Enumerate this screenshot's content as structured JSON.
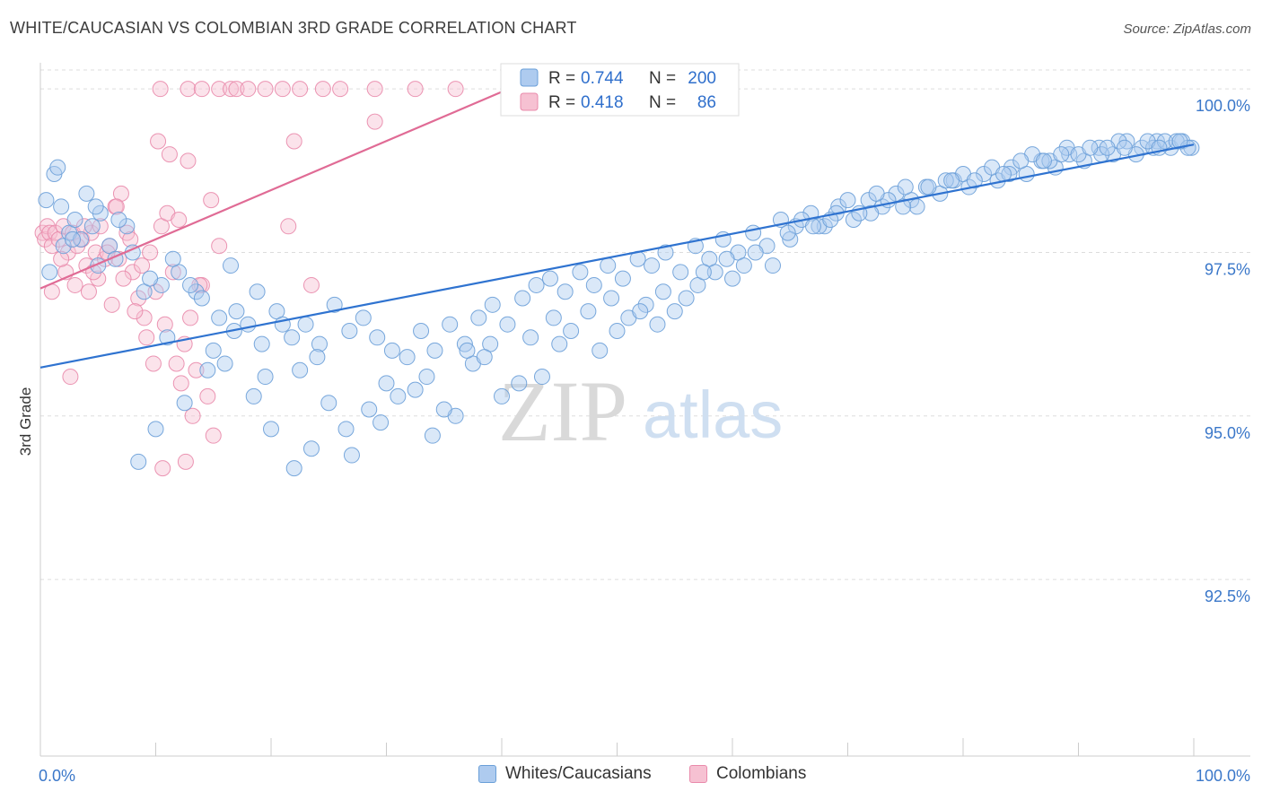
{
  "header": {
    "title": "WHITE/CAUCASIAN VS COLOMBIAN 3RD GRADE CORRELATION CHART",
    "source": "Source: ZipAtlas.com"
  },
  "watermark": {
    "zip": "ZIP",
    "atlas": "atlas"
  },
  "colors": {
    "blue_fill": "#aecbef",
    "blue_stroke": "#6a9fd8",
    "blue_line": "#2f73d0",
    "pink_fill": "#f6c1d2",
    "pink_stroke": "#e98aab",
    "pink_line": "#e06b95",
    "tick_text": "#3a77c9",
    "grid": "#dddddd"
  },
  "stats_legend": [
    {
      "r_label": "R =",
      "r_value": "0.744",
      "n_label": "N =",
      "n_value": "200"
    },
    {
      "r_label": "R =",
      "r_value": "0.418",
      "n_label": "N =",
      "n_value": "86"
    }
  ],
  "bottom_legend": [
    {
      "label": "Whites/Caucasians"
    },
    {
      "label": "Colombians"
    }
  ],
  "chart_data": {
    "type": "scatter",
    "title": "WHITE/CAUCASIAN VS COLOMBIAN 3RD GRADE CORRELATION CHART",
    "xlabel": "",
    "ylabel": "3rd Grade",
    "xlim": [
      0,
      100
    ],
    "ylim": [
      89.8,
      100.4
    ],
    "x_tick_labels": [
      "0.0%",
      "100.0%"
    ],
    "y_ticks": [
      100.0,
      97.5,
      95.0,
      92.5
    ],
    "y_tick_labels": [
      "100.0%",
      "97.5%",
      "95.0%",
      "92.5%"
    ],
    "grid": true,
    "legend": "top-center",
    "series": [
      {
        "name": "Whites/Caucasians",
        "r": 0.744,
        "n": 200,
        "trend": {
          "x": [
            0,
            100
          ],
          "y": [
            95.74,
            99.15
          ]
        },
        "points": [
          [
            0.5,
            98.3
          ],
          [
            1.2,
            98.7
          ],
          [
            1.8,
            98.2
          ],
          [
            2.5,
            97.8
          ],
          [
            3.0,
            98.0
          ],
          [
            4.0,
            98.4
          ],
          [
            4.5,
            97.9
          ],
          [
            5.2,
            98.1
          ],
          [
            6.0,
            97.6
          ],
          [
            7.5,
            97.9
          ],
          [
            0.8,
            97.2
          ],
          [
            2.0,
            97.6
          ],
          [
            3.5,
            97.7
          ],
          [
            5.0,
            97.3
          ],
          [
            6.5,
            97.4
          ],
          [
            8.0,
            97.5
          ],
          [
            9.0,
            96.9
          ],
          [
            10.5,
            97.0
          ],
          [
            12.0,
            97.2
          ],
          [
            13.5,
            96.9
          ],
          [
            14.0,
            96.8
          ],
          [
            15.5,
            96.5
          ],
          [
            16.8,
            96.3
          ],
          [
            18.0,
            96.4
          ],
          [
            19.2,
            96.1
          ],
          [
            20.5,
            96.6
          ],
          [
            21.8,
            96.2
          ],
          [
            23.0,
            96.4
          ],
          [
            24.2,
            96.1
          ],
          [
            25.5,
            96.7
          ],
          [
            26.8,
            96.3
          ],
          [
            28.0,
            96.5
          ],
          [
            29.2,
            96.2
          ],
          [
            30.5,
            96.0
          ],
          [
            31.8,
            95.9
          ],
          [
            33.0,
            96.3
          ],
          [
            34.2,
            96.0
          ],
          [
            35.5,
            96.4
          ],
          [
            36.8,
            96.1
          ],
          [
            38.0,
            96.5
          ],
          [
            39.2,
            96.7
          ],
          [
            40.5,
            96.4
          ],
          [
            41.8,
            96.8
          ],
          [
            43.0,
            97.0
          ],
          [
            44.2,
            97.1
          ],
          [
            45.5,
            96.9
          ],
          [
            46.8,
            97.2
          ],
          [
            48.0,
            97.0
          ],
          [
            49.2,
            97.3
          ],
          [
            50.5,
            97.1
          ],
          [
            51.8,
            97.4
          ],
          [
            53.0,
            97.3
          ],
          [
            54.2,
            97.5
          ],
          [
            55.5,
            97.2
          ],
          [
            56.8,
            97.6
          ],
          [
            58.0,
            97.4
          ],
          [
            59.2,
            97.7
          ],
          [
            60.5,
            97.5
          ],
          [
            61.8,
            97.8
          ],
          [
            63.0,
            97.6
          ],
          [
            64.2,
            98.0
          ],
          [
            65.5,
            97.9
          ],
          [
            66.8,
            98.1
          ],
          [
            68.0,
            97.9
          ],
          [
            69.2,
            98.2
          ],
          [
            70.5,
            98.0
          ],
          [
            71.8,
            98.3
          ],
          [
            73.0,
            98.2
          ],
          [
            74.2,
            98.4
          ],
          [
            75.5,
            98.3
          ],
          [
            76.8,
            98.5
          ],
          [
            78.0,
            98.4
          ],
          [
            79.2,
            98.6
          ],
          [
            80.5,
            98.5
          ],
          [
            81.8,
            98.7
          ],
          [
            83.0,
            98.6
          ],
          [
            84.2,
            98.8
          ],
          [
            85.5,
            98.7
          ],
          [
            86.8,
            98.9
          ],
          [
            88.0,
            98.8
          ],
          [
            89.2,
            99.0
          ],
          [
            90.5,
            98.9
          ],
          [
            91.8,
            99.1
          ],
          [
            93.0,
            99.0
          ],
          [
            94.2,
            99.2
          ],
          [
            95.5,
            99.1
          ],
          [
            96.8,
            99.2
          ],
          [
            98.0,
            99.1
          ],
          [
            99.0,
            99.2
          ],
          [
            99.8,
            99.1
          ],
          [
            1.5,
            98.8
          ],
          [
            4.8,
            98.2
          ],
          [
            9.5,
            97.1
          ],
          [
            11.0,
            96.2
          ],
          [
            13.0,
            97.0
          ],
          [
            15.0,
            96.0
          ],
          [
            17.0,
            96.6
          ],
          [
            19.5,
            95.6
          ],
          [
            21.0,
            96.4
          ],
          [
            22.5,
            95.7
          ],
          [
            24.0,
            95.9
          ],
          [
            25.0,
            95.2
          ],
          [
            26.5,
            94.8
          ],
          [
            28.5,
            95.1
          ],
          [
            30.0,
            95.5
          ],
          [
            32.5,
            95.4
          ],
          [
            34.0,
            94.7
          ],
          [
            36.0,
            95.0
          ],
          [
            37.5,
            95.8
          ],
          [
            39.0,
            96.1
          ],
          [
            40.0,
            95.3
          ],
          [
            41.5,
            95.5
          ],
          [
            42.5,
            96.2
          ],
          [
            44.5,
            96.5
          ],
          [
            46.0,
            96.3
          ],
          [
            47.5,
            96.6
          ],
          [
            49.5,
            96.8
          ],
          [
            51.0,
            96.5
          ],
          [
            52.5,
            96.7
          ],
          [
            54.0,
            96.9
          ],
          [
            55.0,
            96.6
          ],
          [
            57.0,
            97.0
          ],
          [
            58.5,
            97.2
          ],
          [
            60.0,
            97.1
          ],
          [
            62.0,
            97.5
          ],
          [
            63.5,
            97.3
          ],
          [
            65.0,
            97.7
          ],
          [
            66.0,
            98.0
          ],
          [
            67.5,
            97.9
          ],
          [
            69.0,
            98.1
          ],
          [
            70.0,
            98.3
          ],
          [
            72.0,
            98.1
          ],
          [
            73.5,
            98.3
          ],
          [
            75.0,
            98.5
          ],
          [
            76.0,
            98.2
          ],
          [
            78.5,
            98.6
          ],
          [
            80.0,
            98.7
          ],
          [
            82.5,
            98.8
          ],
          [
            84.0,
            98.7
          ],
          [
            86.0,
            99.0
          ],
          [
            87.5,
            98.9
          ],
          [
            89.0,
            99.1
          ],
          [
            90.0,
            99.0
          ],
          [
            92.0,
            99.0
          ],
          [
            93.5,
            99.2
          ],
          [
            95.0,
            99.0
          ],
          [
            96.5,
            99.1
          ],
          [
            97.5,
            99.2
          ],
          [
            98.5,
            99.2
          ],
          [
            99.5,
            99.1
          ],
          [
            8.5,
            94.3
          ],
          [
            10.0,
            94.8
          ],
          [
            12.5,
            95.2
          ],
          [
            14.5,
            95.7
          ],
          [
            16.0,
            95.8
          ],
          [
            18.5,
            95.3
          ],
          [
            20.0,
            94.8
          ],
          [
            22.0,
            94.2
          ],
          [
            23.5,
            94.5
          ],
          [
            27.0,
            94.4
          ],
          [
            29.5,
            94.9
          ],
          [
            31.0,
            95.3
          ],
          [
            33.5,
            95.6
          ],
          [
            35.0,
            95.1
          ],
          [
            37.0,
            96.0
          ],
          [
            38.5,
            95.9
          ],
          [
            43.5,
            95.6
          ],
          [
            45.0,
            96.1
          ],
          [
            48.5,
            96.0
          ],
          [
            50.0,
            96.3
          ],
          [
            52.0,
            96.6
          ],
          [
            53.5,
            96.4
          ],
          [
            56.0,
            96.8
          ],
          [
            57.5,
            97.2
          ],
          [
            59.5,
            97.4
          ],
          [
            61.0,
            97.3
          ],
          [
            64.8,
            97.8
          ],
          [
            67.0,
            97.9
          ],
          [
            68.5,
            98.0
          ],
          [
            71.0,
            98.1
          ],
          [
            72.5,
            98.4
          ],
          [
            74.8,
            98.2
          ],
          [
            77.0,
            98.5
          ],
          [
            79.0,
            98.6
          ],
          [
            81.0,
            98.6
          ],
          [
            83.5,
            98.7
          ],
          [
            85.0,
            98.9
          ],
          [
            87.0,
            98.9
          ],
          [
            88.5,
            99.0
          ],
          [
            91.0,
            99.1
          ],
          [
            92.5,
            99.1
          ],
          [
            94.0,
            99.1
          ],
          [
            96.0,
            99.2
          ],
          [
            97.0,
            99.1
          ],
          [
            98.8,
            99.2
          ],
          [
            2.8,
            97.7
          ],
          [
            6.8,
            98.0
          ],
          [
            11.5,
            97.4
          ],
          [
            16.5,
            97.3
          ],
          [
            18.8,
            96.9
          ]
        ]
      },
      {
        "name": "Colombians",
        "r": 0.418,
        "n": 86,
        "trend": {
          "x": [
            0,
            40.6
          ],
          "y": [
            96.95,
            100.0
          ]
        },
        "points": [
          [
            0.2,
            97.8
          ],
          [
            0.4,
            97.7
          ],
          [
            0.6,
            97.9
          ],
          [
            0.8,
            97.8
          ],
          [
            1.0,
            97.6
          ],
          [
            1.3,
            97.8
          ],
          [
            1.6,
            97.7
          ],
          [
            2.0,
            97.9
          ],
          [
            2.4,
            97.5
          ],
          [
            2.8,
            97.8
          ],
          [
            3.2,
            97.6
          ],
          [
            3.6,
            97.7
          ],
          [
            4.0,
            97.3
          ],
          [
            4.4,
            97.8
          ],
          [
            4.8,
            97.5
          ],
          [
            5.2,
            97.9
          ],
          [
            5.6,
            97.4
          ],
          [
            6.0,
            97.6
          ],
          [
            6.5,
            98.2
          ],
          [
            7.0,
            98.4
          ],
          [
            7.5,
            97.8
          ],
          [
            8.0,
            97.2
          ],
          [
            8.5,
            96.8
          ],
          [
            9.0,
            96.5
          ],
          [
            9.5,
            97.5
          ],
          [
            10.0,
            96.9
          ],
          [
            10.5,
            97.9
          ],
          [
            11.0,
            98.1
          ],
          [
            11.5,
            97.2
          ],
          [
            12.0,
            98.0
          ],
          [
            12.5,
            96.1
          ],
          [
            13.0,
            96.5
          ],
          [
            13.5,
            95.7
          ],
          [
            14.0,
            97.0
          ],
          [
            14.5,
            95.3
          ],
          [
            15.0,
            94.7
          ],
          [
            10.2,
            99.2
          ],
          [
            11.2,
            99.0
          ],
          [
            12.8,
            98.9
          ],
          [
            14.8,
            98.3
          ],
          [
            15.5,
            97.6
          ],
          [
            21.5,
            97.9
          ],
          [
            22.0,
            99.2
          ],
          [
            29.0,
            99.5
          ],
          [
            10.4,
            100.0
          ],
          [
            12.8,
            100.0
          ],
          [
            14.0,
            100.0
          ],
          [
            15.5,
            100.0
          ],
          [
            16.5,
            100.0
          ],
          [
            17.0,
            100.0
          ],
          [
            18.0,
            100.0
          ],
          [
            21.0,
            100.0
          ],
          [
            22.5,
            100.0
          ],
          [
            24.5,
            100.0
          ],
          [
            26.0,
            100.0
          ],
          [
            29.0,
            100.0
          ],
          [
            32.5,
            100.0
          ],
          [
            36.0,
            100.0
          ],
          [
            3.0,
            97.0
          ],
          [
            4.2,
            96.9
          ],
          [
            5.0,
            97.1
          ],
          [
            6.2,
            96.7
          ],
          [
            6.8,
            97.4
          ],
          [
            7.8,
            97.7
          ],
          [
            8.8,
            97.3
          ],
          [
            9.2,
            96.2
          ],
          [
            10.8,
            96.4
          ],
          [
            11.8,
            95.8
          ],
          [
            12.2,
            95.5
          ],
          [
            13.2,
            95.0
          ],
          [
            2.6,
            95.6
          ],
          [
            1.0,
            96.9
          ],
          [
            2.2,
            97.2
          ],
          [
            3.8,
            97.9
          ],
          [
            5.8,
            97.5
          ],
          [
            7.2,
            97.1
          ],
          [
            8.2,
            96.6
          ],
          [
            9.8,
            95.8
          ],
          [
            10.6,
            94.2
          ],
          [
            12.6,
            94.3
          ],
          [
            13.8,
            97.0
          ],
          [
            23.5,
            97.0
          ],
          [
            19.5,
            100.0
          ],
          [
            1.8,
            97.4
          ],
          [
            4.6,
            97.2
          ],
          [
            6.6,
            98.2
          ]
        ]
      }
    ]
  }
}
